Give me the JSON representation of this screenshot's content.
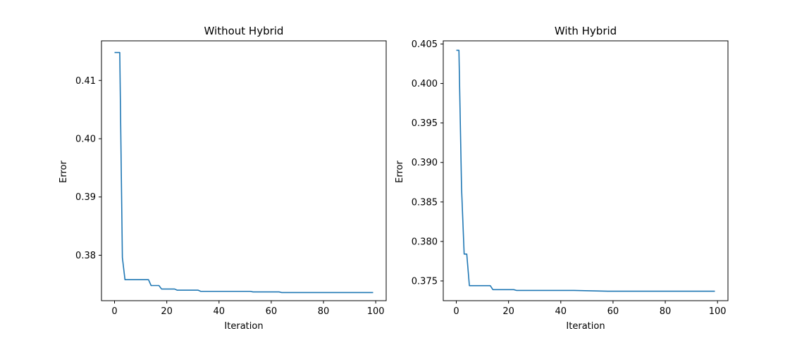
{
  "chart_data": [
    {
      "type": "line",
      "title": "Without Hybrid",
      "xlabel": "Iteration",
      "ylabel": "Error",
      "xlim": [
        -5,
        104
      ],
      "ylim": [
        0.3722,
        0.4168
      ],
      "xticks": [
        0,
        20,
        40,
        60,
        80,
        100
      ],
      "yticks": [
        0.38,
        0.39,
        0.4,
        0.41
      ],
      "xtick_labels": [
        "0",
        "20",
        "40",
        "60",
        "80",
        "100"
      ],
      "ytick_labels": [
        "0.38",
        "0.39",
        "0.40",
        "0.41"
      ],
      "grid": false,
      "color": "#1f77b4",
      "series": [
        {
          "x": [
            0,
            2,
            3,
            4,
            13,
            14,
            17,
            18,
            23,
            24,
            32,
            33,
            52,
            53,
            63,
            64,
            99
          ],
          "y": [
            0.4148,
            0.4148,
            0.3796,
            0.3758,
            0.3758,
            0.3748,
            0.3748,
            0.3742,
            0.3742,
            0.374,
            0.374,
            0.3738,
            0.3738,
            0.3737,
            0.3737,
            0.3736,
            0.3736
          ]
        }
      ]
    },
    {
      "type": "line",
      "title": "With Hybrid",
      "xlabel": "Iteration",
      "ylabel": "Error",
      "xlim": [
        -5,
        104
      ],
      "ylim": [
        0.3725,
        0.4054
      ],
      "xticks": [
        0,
        20,
        40,
        60,
        80,
        100
      ],
      "yticks": [
        0.375,
        0.38,
        0.385,
        0.39,
        0.395,
        0.4,
        0.405
      ],
      "xtick_labels": [
        "0",
        "20",
        "40",
        "60",
        "80",
        "100"
      ],
      "ytick_labels": [
        "0.375",
        "0.380",
        "0.385",
        "0.390",
        "0.395",
        "0.400",
        "0.405"
      ],
      "grid": false,
      "color": "#1f77b4",
      "series": [
        {
          "x": [
            0,
            1,
            2,
            3,
            4,
            5,
            13,
            14,
            22,
            23,
            30,
            45,
            58,
            99
          ],
          "y": [
            0.4042,
            0.4042,
            0.3868,
            0.3784,
            0.3784,
            0.3744,
            0.3744,
            0.3739,
            0.3739,
            0.3738,
            0.3738,
            0.3738,
            0.3737,
            0.3737
          ]
        }
      ]
    }
  ]
}
